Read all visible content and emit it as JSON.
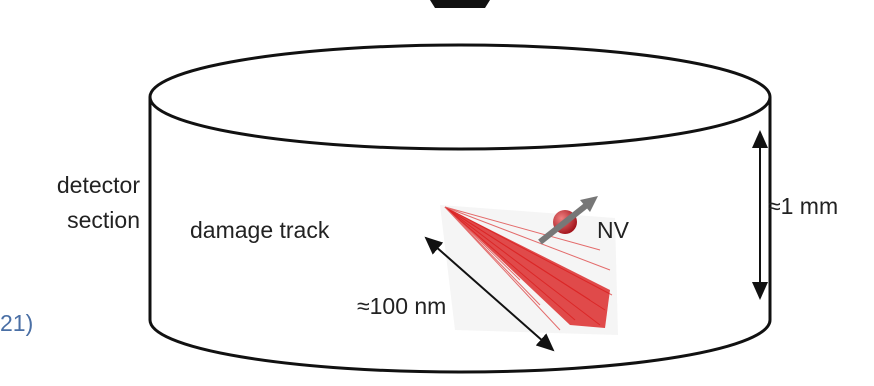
{
  "detector": {
    "label_lines": [
      "detector",
      "section"
    ]
  },
  "track": {
    "label": "damage track",
    "length_label": "≈100 nm"
  },
  "defect": {
    "label": "NV"
  },
  "height": {
    "label": "≈1 mm"
  },
  "side_fragment": {
    "label": "21)"
  }
}
